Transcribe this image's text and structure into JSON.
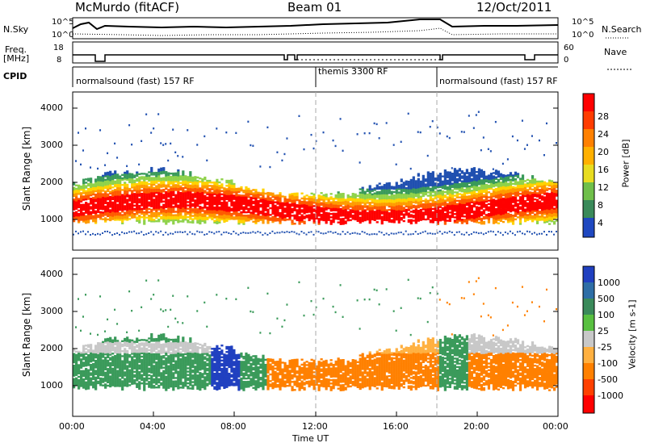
{
  "header": {
    "station": "McMurdo (fitACF)",
    "beam": "Beam 01",
    "date": "12/Oct/2011"
  },
  "top_panels": {
    "nsky_label": "N.Sky",
    "nsky_ticks": [
      "10^5",
      "10^0"
    ],
    "nsearch_label": "N.Search",
    "nsearch_ticks": [
      "10^5",
      "10^0"
    ],
    "freq_label_1": "Freq.",
    "freq_label_2": "[MHz]",
    "freq_ticks": [
      "18",
      "8"
    ],
    "nave_label": "Nave",
    "nave_ticks": [
      "60",
      "0"
    ],
    "cpid_label": "CPID",
    "cpid_segments": [
      {
        "label": "normalsound (fast) 157 RF",
        "start_hour": 0
      },
      {
        "label": "themis 3300 RF",
        "start_hour": 12
      },
      {
        "label": "normalsound (fast) 157 RF",
        "start_hour": 18
      }
    ]
  },
  "panels": {
    "power": {
      "ylabel": "Slant Range [km]",
      "yticks": [
        "4000",
        "3000",
        "2000",
        "1000"
      ],
      "colorbar_label": "Power [dB]",
      "colorbar_ticks": [
        "28",
        "24",
        "20",
        "16",
        "12",
        "8",
        "4"
      ],
      "colorbar_colors": [
        "#ff0000",
        "#ff5a00",
        "#ff9a00",
        "#ffd200",
        "#8fd24a",
        "#3a9a5a",
        "#2050b0",
        "#0000ff"
      ]
    },
    "velocity": {
      "ylabel": "Slant Range [km]",
      "yticks": [
        "4000",
        "3000",
        "2000",
        "1000"
      ],
      "colorbar_label": "Velocity [m s-1]",
      "colorbar_ticks": [
        "1000",
        "500",
        "100",
        "25",
        "-25",
        "-100",
        "-500",
        "-1000"
      ],
      "colorbar_colors": [
        "#2040c0",
        "#3f7f9f",
        "#3a9a5a",
        "#58c040",
        "#c8c8c8",
        "#ffb040",
        "#ff8000",
        "#ff4000",
        "#ff0000"
      ]
    }
  },
  "xaxis": {
    "ticks": [
      "00:00",
      "04:00",
      "08:00",
      "12:00",
      "16:00",
      "20:00",
      "00:00"
    ],
    "label": "Time UT"
  },
  "chart_data": [
    {
      "type": "heatmap",
      "title": "Power",
      "xlabel": "Time UT",
      "ylabel": "Slant Range [km]",
      "x_range_hours": [
        0,
        24
      ],
      "ylim": [
        180,
        4600
      ],
      "colorbar": {
        "label": "Power [dB]",
        "range": [
          0,
          30
        ],
        "ticks": [
          4,
          8,
          12,
          16,
          20,
          24,
          28
        ]
      },
      "description_points": [
        {
          "hour": 1,
          "range_km": 1000,
          "power_db": 28
        },
        {
          "hour": 6,
          "range_km": 900,
          "power_db": 28
        },
        {
          "hour": 10,
          "range_km": 1200,
          "power_db": 24
        },
        {
          "hour": 14,
          "range_km": 1100,
          "power_db": 20
        },
        {
          "hour": 16,
          "range_km": 700,
          "power_db": 28
        },
        {
          "hour": 21,
          "range_km": 900,
          "power_db": 28
        }
      ]
    },
    {
      "type": "heatmap",
      "title": "Velocity",
      "xlabel": "Time UT",
      "ylabel": "Slant Range [km]",
      "x_range_hours": [
        0,
        24
      ],
      "ylim": [
        180,
        4600
      ],
      "colorbar": {
        "label": "Velocity [m s-1]",
        "ticks": [
          -1000,
          -500,
          -100,
          -25,
          25,
          100,
          500,
          1000
        ]
      },
      "description_points": [
        {
          "hour": 4,
          "range_km": 1000,
          "velocity_ms": 150
        },
        {
          "hour": 7.5,
          "range_km": 1000,
          "velocity_ms": 1000
        },
        {
          "hour": 11,
          "range_km": 1300,
          "velocity_ms": -300
        },
        {
          "hour": 14,
          "range_km": 1300,
          "velocity_ms": -300
        },
        {
          "hour": 21,
          "range_km": 1000,
          "velocity_ms": -300
        }
      ]
    }
  ]
}
